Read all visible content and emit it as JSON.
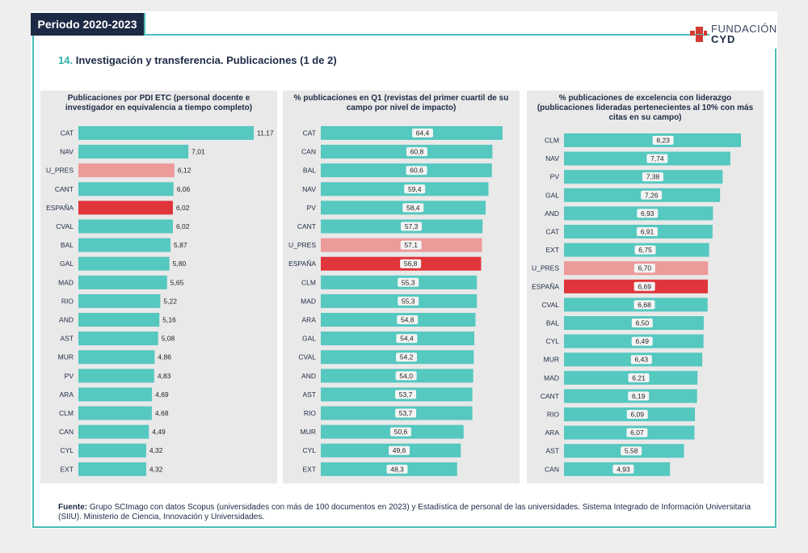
{
  "header": {
    "period": "Periodo 2020-2023",
    "section_number": "14.",
    "section_title": "Investigación y transferencia. Publicaciones (1 de 2)",
    "logo_line1": "FUNDACIÓN",
    "logo_line2": "CYD"
  },
  "colors": {
    "teal": "#55c8c0",
    "highlight_pink": "#ed9a9a",
    "highlight_red": "#e0353a",
    "navy": "#1d2a45"
  },
  "chart_data": [
    {
      "type": "bar",
      "orientation": "horizontal",
      "title": "Publicaciones por PDI ETC (personal docente e investigador en equivalencia a tiempo completo)",
      "categories": [
        "CAT",
        "NAV",
        "U_PRES",
        "CANT",
        "ESPAÑA",
        "CVAL",
        "BAL",
        "GAL",
        "MAD",
        "RIO",
        "AND",
        "AST",
        "MUR",
        "PV",
        "ARA",
        "CLM",
        "CAN",
        "CYL",
        "EXT"
      ],
      "values": [
        11.17,
        7.01,
        6.12,
        6.06,
        6.02,
        6.02,
        5.87,
        5.8,
        5.65,
        5.22,
        5.16,
        5.08,
        4.86,
        4.83,
        4.69,
        4.68,
        4.49,
        4.32,
        4.32
      ],
      "labels": [
        "11,17",
        "7,01",
        "6,12",
        "6,06",
        "6,02",
        "6,02",
        "5,87",
        "5,80",
        "5,65",
        "5,22",
        "5,16",
        "5,08",
        "4,86",
        "4,83",
        "4,69",
        "4,68",
        "4,49",
        "4,32",
        "4,32"
      ],
      "label_position": "outside",
      "xlim": [
        0,
        11.17
      ]
    },
    {
      "type": "bar",
      "orientation": "horizontal",
      "title": "% publicaciones en Q1 (revistas del primer cuartil de su campo por nivel de impacto)",
      "categories": [
        "CAT",
        "CAN",
        "BAL",
        "NAV",
        "PV",
        "CANT",
        "U_PRES",
        "ESPAÑA",
        "CLM",
        "MAD",
        "ARA",
        "GAL",
        "CVAL",
        "AND",
        "AST",
        "RIO",
        "MUR",
        "CYL",
        "EXT"
      ],
      "values": [
        64.4,
        60.8,
        60.6,
        59.4,
        58.4,
        57.3,
        57.1,
        56.8,
        55.3,
        55.3,
        54.8,
        54.4,
        54.2,
        54.0,
        53.7,
        53.7,
        50.6,
        49.6,
        48.3
      ],
      "labels": [
        "64,4",
        "60,8",
        "60,6",
        "59,4",
        "58,4",
        "57,3",
        "57,1",
        "56,8",
        "55,3",
        "55,3",
        "54,8",
        "54,4",
        "54,2",
        "54,0",
        "53,7",
        "53,7",
        "50,6",
        "49,6",
        "48,3"
      ],
      "label_position": "inside",
      "xlim": [
        0,
        64.4
      ]
    },
    {
      "type": "bar",
      "orientation": "horizontal",
      "title": "% publicaciones de excelencia con liderazgo (publicaciones lideradas pertenecientes al 10% con más citas en su campo)",
      "categories": [
        "CLM",
        "NAV",
        "PV",
        "GAL",
        "AND",
        "CAT",
        "EXT",
        "U_PRES",
        "ESPAÑA",
        "CVAL",
        "BAL",
        "CYL",
        "MUR",
        "MAD",
        "CANT",
        "RIO",
        "ARA",
        "AST",
        "CAN"
      ],
      "values": [
        8.23,
        7.74,
        7.38,
        7.26,
        6.93,
        6.91,
        6.75,
        6.7,
        6.69,
        6.68,
        6.5,
        6.49,
        6.43,
        6.21,
        6.19,
        6.09,
        6.07,
        5.58,
        4.93
      ],
      "labels": [
        "8,23",
        "7,74",
        "7,38",
        "7,26",
        "6,93",
        "6,91",
        "6,75",
        "6,70",
        "6,69",
        "6,68",
        "6,50",
        "6,49",
        "6,43",
        "6,21",
        "6,19",
        "6,09",
        "6,07",
        "5,58",
        "4,93"
      ],
      "label_position": "inside",
      "xlim": [
        0,
        8.23
      ]
    }
  ],
  "footnote": {
    "label": "Fuente:",
    "text": " Grupo SCImago con datos Scopus (universidades con más de 100 documentos en 2023) y Estadística de personal de las universidades. Sistema Integrado de Información Universitaria (SIIU). Ministerio de Ciencia, Innovación y Universidades."
  }
}
